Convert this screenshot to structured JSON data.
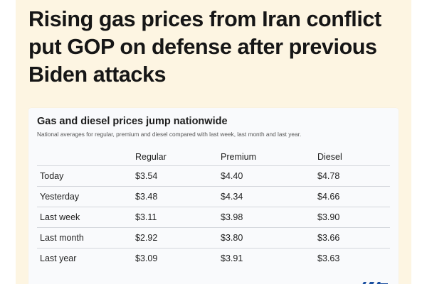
{
  "headline": "Rising gas prices from Iran conflict put GOP on defense after previous Biden attacks",
  "table_card": {
    "title": "Gas and diesel prices jump nationwide",
    "subtitle": "National averages for regular, premium and diesel compared with last week, last month and last year.",
    "columns": [
      "",
      "Regular",
      "Premium",
      "Diesel"
    ],
    "rows": [
      {
        "label": "Today",
        "regular": "$3.54",
        "premium": "$4.40",
        "diesel": "$4.78"
      },
      {
        "label": "Yesterday",
        "regular": "$3.48",
        "premium": "$4.34",
        "diesel": "$4.66"
      },
      {
        "label": "Last week",
        "regular": "$3.11",
        "premium": "$3.98",
        "diesel": "$3.90"
      },
      {
        "label": "Last month",
        "regular": "$2.92",
        "premium": "$3.80",
        "diesel": "$3.66"
      },
      {
        "label": "Last year",
        "regular": "$3.09",
        "premium": "$3.91",
        "diesel": "$3.63"
      }
    ]
  },
  "colors": {
    "background": "#fdf5e2",
    "card": "#f9fafc",
    "text": "#161616",
    "logo_blue": "#1a4fa0"
  }
}
